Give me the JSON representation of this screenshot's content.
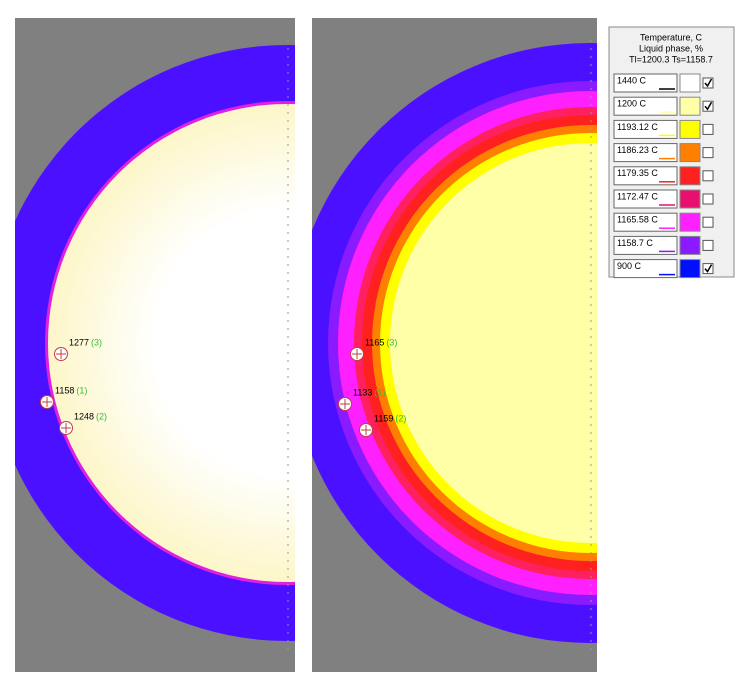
{
  "legend": {
    "title_lines": [
      "Temperature, C",
      "Liquid phase, %",
      "Tl=1200.3 Ts=1158.7"
    ],
    "items": [
      {
        "label": "1440 C",
        "color": "#ffffff",
        "checked": true
      },
      {
        "label": "1200 C",
        "color": "#ffffa8",
        "checked": true
      },
      {
        "label": "1193.12 C",
        "color": "#ffff00",
        "checked": false
      },
      {
        "label": "1186.23 C",
        "color": "#ff8000",
        "checked": false
      },
      {
        "label": "1179.35 C",
        "color": "#ff2020",
        "checked": false
      },
      {
        "label": "1172.47 C",
        "color": "#e8106e",
        "checked": false
      },
      {
        "label": "1165.58 C",
        "color": "#ff20ff",
        "checked": false
      },
      {
        "label": "1158.7 C",
        "color": "#8a1aff",
        "checked": false
      },
      {
        "label": "900 C",
        "color": "#0010ff",
        "checked": true
      }
    ]
  },
  "panels": [
    {
      "probes": [
        {
          "value": "1277",
          "index": "(3)"
        },
        {
          "value": "1158",
          "index": "(1)"
        },
        {
          "value": "1248",
          "index": "(2)"
        }
      ]
    },
    {
      "probes": [
        {
          "value": "1165",
          "index": "(3)"
        },
        {
          "value": "1133",
          "index": "(1)"
        },
        {
          "value": "1159",
          "index": "(2)"
        }
      ]
    }
  ]
}
